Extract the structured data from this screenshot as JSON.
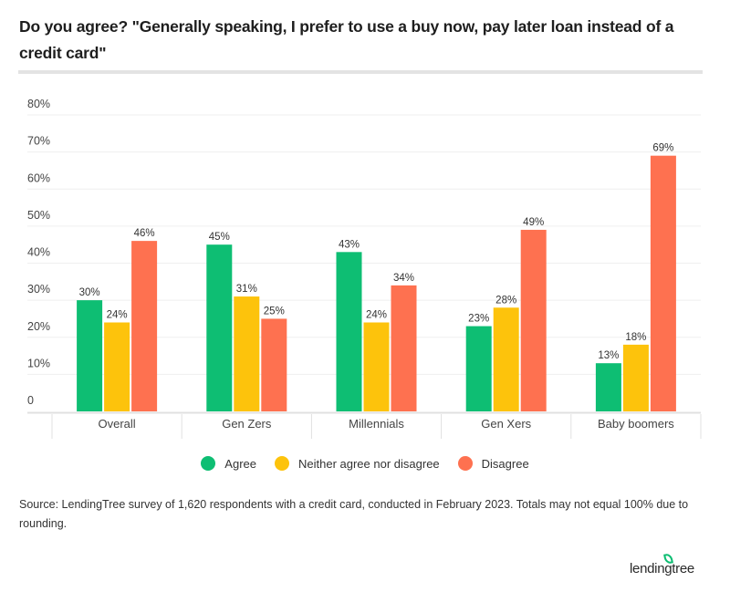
{
  "chart_data": {
    "type": "bar",
    "title": "Do you agree? \"Generally speaking, I prefer to use a buy now, pay later loan instead of a credit card\"",
    "xlabel": "",
    "ylabel": "",
    "ylim": [
      0,
      80
    ],
    "yticks": [
      0,
      10,
      20,
      30,
      40,
      50,
      60,
      70,
      80
    ],
    "ytick_labels": [
      "0",
      "10%",
      "20%",
      "30%",
      "40%",
      "50%",
      "60%",
      "70%",
      "80%"
    ],
    "grid": true,
    "legend_position": "bottom",
    "categories": [
      "Overall",
      "Gen Zers",
      "Millennials",
      "Gen Xers",
      "Baby boomers"
    ],
    "series": [
      {
        "name": "Agree",
        "color": "#0ebe73",
        "values": [
          30,
          45,
          43,
          23,
          13
        ]
      },
      {
        "name": "Neither agree nor disagree",
        "color": "#fdc30c",
        "values": [
          24,
          31,
          24,
          28,
          18
        ]
      },
      {
        "name": "Disagree",
        "color": "#fe7150",
        "values": [
          46,
          25,
          34,
          49,
          69
        ]
      }
    ],
    "value_suffix": "%"
  },
  "source_text": "Source: LendingTree survey of 1,620 respondents with a credit card, conducted in February 2023. Totals may not equal 100% due to rounding.",
  "logo_text": "lendingtree"
}
